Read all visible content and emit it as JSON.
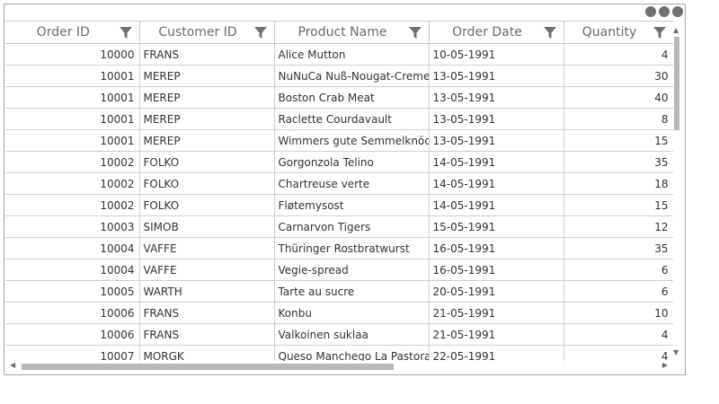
{
  "columns": [
    "Order ID",
    "Customer ID",
    "Product Name",
    "Order Date",
    "Quantity"
  ],
  "rows": [
    [
      "10000",
      "FRANS",
      "Alice Mutton",
      "10-05-1991",
      "4"
    ],
    [
      "10001",
      "MEREP",
      "NuNuCa Nuß-Nougat-Creme",
      "13-05-1991",
      "30"
    ],
    [
      "10001",
      "MEREP",
      "Boston Crab Meat",
      "13-05-1991",
      "40"
    ],
    [
      "10001",
      "MEREP",
      "Raclette Courdavault",
      "13-05-1991",
      "8"
    ],
    [
      "10001",
      "MEREP",
      "Wimmers gute Semmelknödel",
      "13-05-1991",
      "15"
    ],
    [
      "10002",
      "FOLKO",
      "Gorgonzola Telino",
      "14-05-1991",
      "35"
    ],
    [
      "10002",
      "FOLKO",
      "Chartreuse verte",
      "14-05-1991",
      "18"
    ],
    [
      "10002",
      "FOLKO",
      "Fløtemysost",
      "14-05-1991",
      "15"
    ],
    [
      "10003",
      "SIMOB",
      "Carnarvon Tigers",
      "15-05-1991",
      "12"
    ],
    [
      "10004",
      "VAFFE",
      "Thüringer Rostbratwurst",
      "16-05-1991",
      "35"
    ],
    [
      "10004",
      "VAFFE",
      "Vegie-spread",
      "16-05-1991",
      "6"
    ],
    [
      "10005",
      "WARTH",
      "Tarte au sucre",
      "20-05-1991",
      "6"
    ],
    [
      "10006",
      "FRANS",
      "Konbu",
      "21-05-1991",
      "10"
    ],
    [
      "10006",
      "FRANS",
      "Valkoinen suklaa",
      "21-05-1991",
      "4"
    ],
    [
      "10007",
      "MORGK",
      "Queso Manchego La Pastora",
      "22-05-1991",
      "4"
    ]
  ],
  "icons": {
    "filter": "filter-icon",
    "menu": "more-dots-icon",
    "scroll_up": "▲",
    "scroll_down": "▼",
    "scroll_left": "◀",
    "scroll_right": "▶"
  },
  "colors": {
    "icon": "#707070",
    "border": "#c8c8c8",
    "thumb": "#b8b8b8"
  }
}
